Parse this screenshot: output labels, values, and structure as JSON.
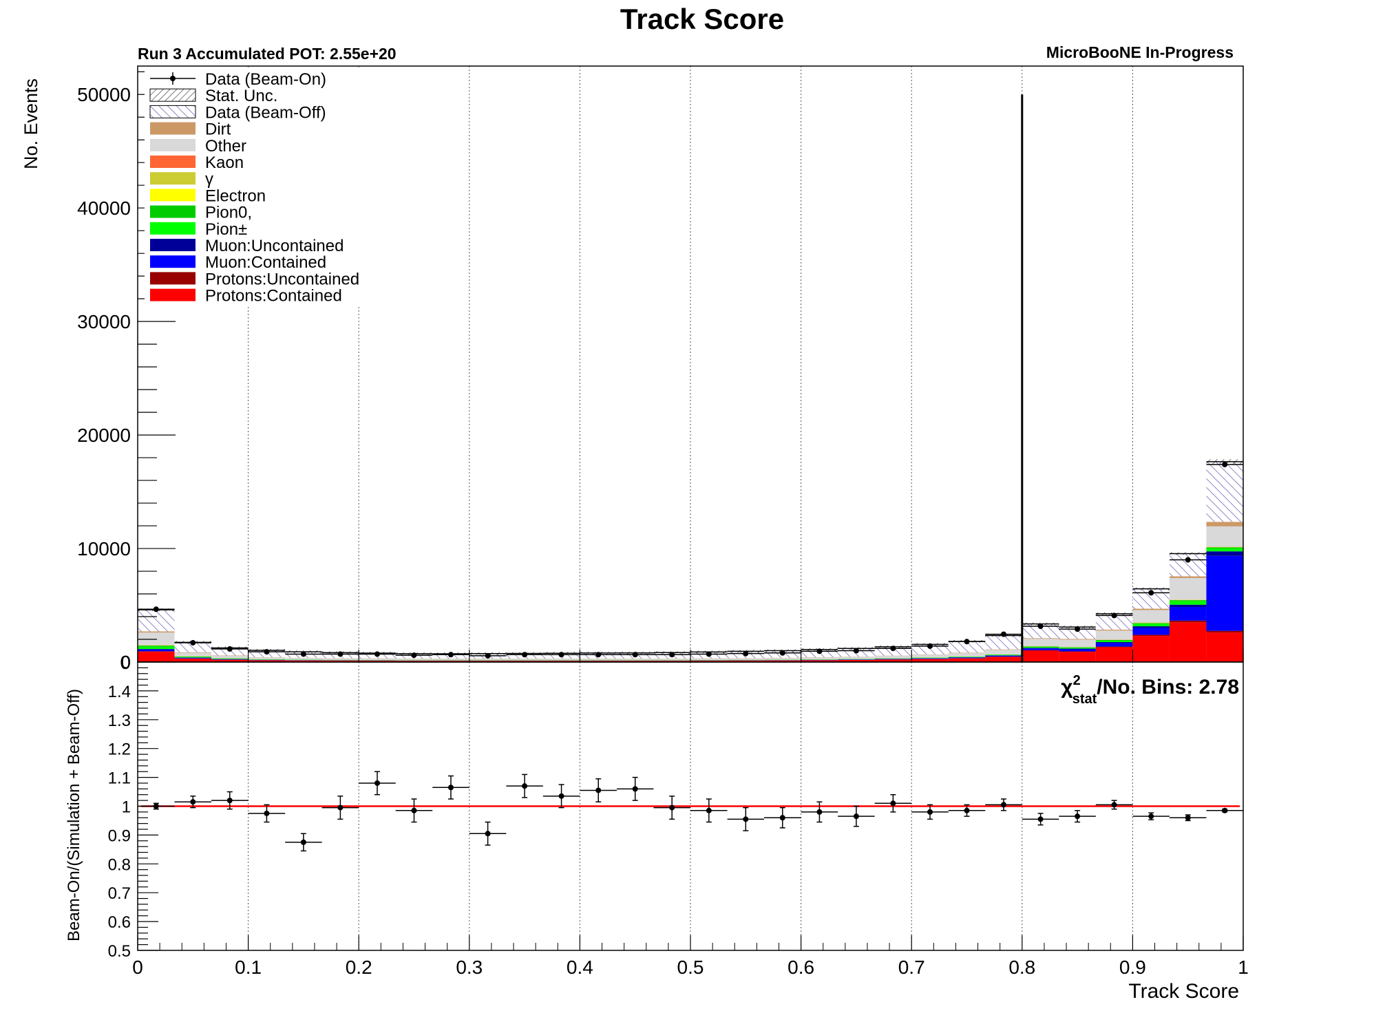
{
  "chart_data": [
    {
      "type": "bar",
      "title": "Track Score",
      "subtitle_left": "Run 3 Accumulated POT: 2.55e+20",
      "subtitle_right": "MicroBooNE In-Progress",
      "xlabel": "",
      "ylabel": "No. Events",
      "xlim": [
        0,
        1
      ],
      "ylim": [
        0,
        52500
      ],
      "yticks": [
        "0",
        "10000",
        "20000",
        "30000",
        "40000",
        "50000"
      ],
      "grid": "vertical dotted",
      "legend_position": "top-left",
      "stacked": true,
      "bin_width": 0.0333,
      "x": [
        0.0167,
        0.05,
        0.0833,
        0.1167,
        0.15,
        0.1833,
        0.2167,
        0.25,
        0.2833,
        0.3167,
        0.35,
        0.3833,
        0.4167,
        0.45,
        0.4833,
        0.5167,
        0.55,
        0.5833,
        0.6167,
        0.65,
        0.6833,
        0.7167,
        0.75,
        0.7833,
        0.8167,
        0.85,
        0.8833,
        0.9167,
        0.95,
        0.9833
      ],
      "cut_line": {
        "x": 0.8,
        "y_top": 50000
      },
      "legend": [
        "Data (Beam-On)",
        "Stat. Unc.",
        "Data (Beam-Off)",
        "Dirt",
        "Other",
        "Kaon",
        "γ",
        "Electron",
        "Pion0,",
        "Pion±",
        "Muon:Uncontained",
        "Muon:Contained",
        "Protons:Uncontained",
        "Protons:Contained"
      ],
      "series": [
        {
          "name": "Protons:Contained",
          "color": "#ff0000",
          "values": [
            900,
            300,
            200,
            150,
            130,
            120,
            110,
            100,
            100,
            100,
            100,
            100,
            100,
            100,
            100,
            110,
            120,
            130,
            150,
            180,
            220,
            260,
            320,
            450,
            1000,
            900,
            1300,
            2300,
            3500,
            2600
          ]
        },
        {
          "name": "Protons:Uncontained",
          "color": "#990000",
          "values": [
            50,
            20,
            15,
            10,
            10,
            10,
            10,
            10,
            10,
            10,
            10,
            10,
            10,
            10,
            10,
            10,
            10,
            10,
            10,
            10,
            15,
            15,
            20,
            30,
            50,
            40,
            60,
            100,
            150,
            150
          ]
        },
        {
          "name": "Muon:Contained",
          "color": "#0000ff",
          "values": [
            150,
            60,
            40,
            30,
            25,
            20,
            20,
            20,
            20,
            20,
            20,
            20,
            20,
            20,
            20,
            20,
            20,
            25,
            30,
            35,
            40,
            50,
            60,
            80,
            150,
            180,
            300,
            600,
            1200,
            6600
          ]
        },
        {
          "name": "Muon:Uncontained",
          "color": "#000099",
          "values": [
            50,
            20,
            15,
            10,
            10,
            10,
            10,
            10,
            10,
            10,
            10,
            10,
            10,
            10,
            10,
            10,
            10,
            10,
            10,
            10,
            10,
            15,
            20,
            30,
            50,
            60,
            100,
            150,
            200,
            400
          ]
        },
        {
          "name": "Pion±",
          "color": "#00ff00",
          "values": [
            200,
            60,
            40,
            30,
            25,
            20,
            20,
            20,
            20,
            20,
            20,
            20,
            20,
            20,
            20,
            20,
            20,
            20,
            25,
            25,
            30,
            35,
            40,
            50,
            80,
            80,
            120,
            200,
            300,
            250
          ]
        },
        {
          "name": "Pion0,",
          "color": "#00cc00",
          "values": [
            100,
            30,
            20,
            15,
            10,
            10,
            10,
            10,
            10,
            10,
            10,
            10,
            10,
            10,
            10,
            10,
            10,
            10,
            10,
            10,
            10,
            15,
            15,
            20,
            40,
            40,
            60,
            80,
            100,
            100
          ]
        },
        {
          "name": "Electron",
          "color": "#ffff00",
          "values": [
            20,
            10,
            5,
            5,
            5,
            5,
            5,
            5,
            5,
            5,
            5,
            5,
            5,
            5,
            5,
            5,
            5,
            5,
            5,
            5,
            5,
            5,
            5,
            5,
            10,
            10,
            10,
            20,
            20,
            20
          ]
        },
        {
          "name": "γ",
          "color": "#cccc33",
          "values": [
            20,
            10,
            5,
            5,
            5,
            5,
            5,
            5,
            5,
            5,
            5,
            5,
            5,
            5,
            5,
            5,
            5,
            5,
            5,
            5,
            5,
            5,
            5,
            5,
            10,
            10,
            10,
            20,
            20,
            20
          ]
        },
        {
          "name": "Kaon",
          "color": "#ff6633",
          "values": [
            10,
            5,
            5,
            5,
            5,
            5,
            5,
            5,
            5,
            5,
            5,
            5,
            5,
            5,
            5,
            5,
            5,
            5,
            5,
            5,
            5,
            5,
            5,
            5,
            5,
            5,
            10,
            10,
            10,
            10
          ]
        },
        {
          "name": "Other",
          "color": "#d9d9d9",
          "values": [
            1100,
            300,
            200,
            150,
            130,
            120,
            110,
            100,
            100,
            100,
            100,
            100,
            100,
            100,
            100,
            110,
            120,
            130,
            150,
            170,
            200,
            250,
            300,
            400,
            650,
            650,
            800,
            1100,
            1900,
            1800
          ]
        },
        {
          "name": "Dirt",
          "color": "#cc9966",
          "values": [
            100,
            40,
            30,
            20,
            20,
            20,
            20,
            20,
            20,
            20,
            20,
            20,
            20,
            20,
            20,
            20,
            20,
            20,
            20,
            20,
            25,
            25,
            30,
            40,
            60,
            60,
            80,
            120,
            150,
            400
          ]
        },
        {
          "name": "Data (Beam-Off)",
          "color": "#9988cc",
          "values": [
            1900,
            880,
            670,
            600,
            530,
            480,
            460,
            430,
            420,
            440,
            450,
            470,
            490,
            500,
            530,
            560,
            600,
            630,
            680,
            720,
            780,
            870,
            1000,
            1220,
            1250,
            1050,
            1400,
            1750,
            2000,
            5300
          ]
        }
      ],
      "data_beam_on": {
        "name": "Data (Beam-On)",
        "values": [
          4650,
          1700,
          1150,
          900,
          700,
          700,
          700,
          600,
          650,
          550,
          650,
          650,
          650,
          650,
          650,
          700,
          750,
          800,
          950,
          1000,
          1200,
          1400,
          1800,
          2450,
          3150,
          2900,
          4100,
          6100,
          9000,
          17400
        ]
      }
    },
    {
      "type": "scatter",
      "xlabel": "Track Score",
      "ylabel": "Beam-On/(Simulation + Beam-Off)",
      "xlim": [
        0,
        1
      ],
      "ylim": [
        0.5,
        1.5
      ],
      "xticks": [
        "0",
        "0.1",
        "0.2",
        "0.3",
        "0.4",
        "0.5",
        "0.6",
        "0.7",
        "0.8",
        "0.9",
        "1"
      ],
      "yticks": [
        "0.5",
        "0.6",
        "0.7",
        "0.8",
        "0.9",
        "1",
        "1.1",
        "1.2",
        "1.3",
        "1.4"
      ],
      "reference_line": {
        "y": 1,
        "color": "#ff0000"
      },
      "annotation_chi": "χ",
      "annotation_sup": "2",
      "annotation_sub": "stat",
      "annotation_rest": "/No. Bins: 2.78",
      "x": [
        0.0167,
        0.05,
        0.0833,
        0.1167,
        0.15,
        0.1833,
        0.2167,
        0.25,
        0.2833,
        0.3167,
        0.35,
        0.3833,
        0.4167,
        0.45,
        0.4833,
        0.5167,
        0.55,
        0.5833,
        0.6167,
        0.65,
        0.6833,
        0.7167,
        0.75,
        0.7833,
        0.8167,
        0.85,
        0.8833,
        0.9167,
        0.95,
        0.9833
      ],
      "values": [
        1.0,
        1.015,
        1.02,
        0.975,
        0.875,
        0.995,
        1.08,
        0.985,
        1.065,
        0.905,
        1.07,
        1.035,
        1.055,
        1.06,
        0.995,
        0.985,
        0.955,
        0.96,
        0.98,
        0.965,
        1.01,
        0.98,
        0.985,
        1.005,
        0.955,
        0.965,
        1.005,
        0.965,
        0.96,
        0.985
      ],
      "errors": [
        0.01,
        0.02,
        0.03,
        0.03,
        0.03,
        0.04,
        0.04,
        0.04,
        0.04,
        0.04,
        0.04,
        0.04,
        0.04,
        0.04,
        0.04,
        0.04,
        0.04,
        0.035,
        0.035,
        0.035,
        0.03,
        0.025,
        0.02,
        0.02,
        0.02,
        0.02,
        0.015,
        0.012,
        0.01,
        0.005
      ]
    }
  ]
}
